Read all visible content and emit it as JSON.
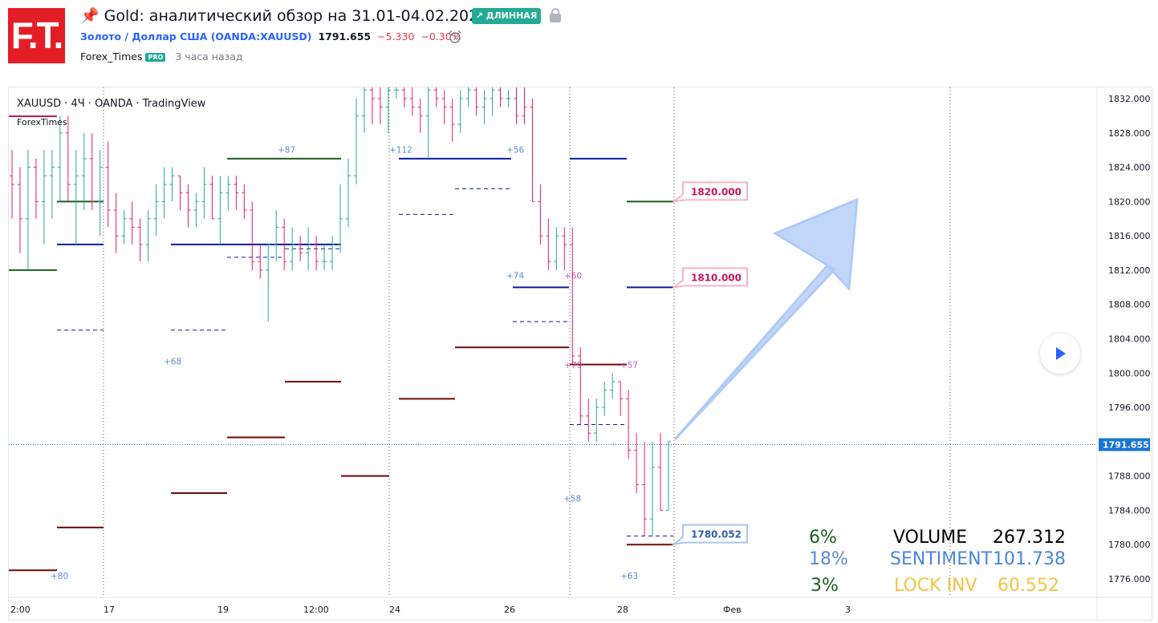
{
  "header": {
    "logo_text": "F.T.",
    "title": "Gold: аналитический обзор на 31.01-04.02.2022.",
    "badge": "↗ ДЛИННАЯ",
    "symbol_name": "Золото / Доллар США (OANDA:XAUUSD)",
    "price": "1791.655",
    "change": "−5.330",
    "change_pct": "−0.30%",
    "author": "Forex_Times",
    "pro_badge": "PRO",
    "time_ago": "3 часа назад",
    "icons": [
      "pin-icon",
      "lock-icon",
      "alarm-icon",
      "play-icon"
    ]
  },
  "chart_data": {
    "type": "candlestick",
    "legend_main": "XAUUSD · 4Ч · OANDA · TradingView",
    "legend_sub": "ForexTimes",
    "y_ticks": [
      "1832.000",
      "1828.000",
      "1824.000",
      "1820.000",
      "1816.000",
      "1812.000",
      "1808.000",
      "1804.000",
      "1800.000",
      "1796.000",
      "1792.000",
      "1788.000",
      "1784.000",
      "1780.000",
      "1776.000"
    ],
    "y_tick_values": [
      1832,
      1828,
      1824,
      1820,
      1816,
      1812,
      1808,
      1804,
      1800,
      1796,
      1792,
      1788,
      1784,
      1780,
      1776
    ],
    "ylim": [
      1774.4,
      1833.3
    ],
    "x_ticks": [
      "2:00",
      "17",
      "19",
      "12:00",
      "24",
      "26",
      "28",
      "Фев",
      "3"
    ],
    "current_price": {
      "label": "1791.655",
      "value": 1791.655
    },
    "price_labels": [
      {
        "label": "1820.000",
        "value": 1820.0,
        "color": "#e91e63"
      },
      {
        "label": "1810.000",
        "value": 1810.0,
        "color": "#e91e63"
      },
      {
        "label": "1780.052",
        "value": 1780.052,
        "color": "#2962ff"
      }
    ],
    "level_labels": [
      "+80",
      "+68",
      "+87",
      "+112",
      "+56",
      "+74",
      "+60",
      "+79",
      "+57",
      "+58",
      "+63"
    ],
    "stats": {
      "volume_label": "VOLUME",
      "volume_value": "267.312",
      "volume_pct": "6%",
      "sentiment_label": "SENTIMENT",
      "sentiment_value": "101.738",
      "sentiment_pct": "18%",
      "lockinv_label": "LOCK INV",
      "lockinv_value": "60.552",
      "lockinv_pct": "3%"
    },
    "colors": {
      "up": "#26a69a",
      "down": "#e91e63",
      "green_level": "#1b5e20",
      "blue_level": "#0d1b9e",
      "maroon_level": "#6d0a0a",
      "arrow": "#90b4f5",
      "price_tag": "#1976d2"
    },
    "candles": [
      [
        1823,
        1826,
        1818,
        1822,
        "d"
      ],
      [
        1822,
        1824,
        1814,
        1818,
        "d"
      ],
      [
        1818,
        1826,
        1812,
        1824,
        "u"
      ],
      [
        1824,
        1825,
        1818,
        1820,
        "d"
      ],
      [
        1820,
        1826,
        1815,
        1823,
        "u"
      ],
      [
        1823,
        1826,
        1818,
        1824,
        "u"
      ],
      [
        1824,
        1830,
        1820,
        1828,
        "u"
      ],
      [
        1828,
        1830,
        1820,
        1822,
        "d"
      ],
      [
        1822,
        1826,
        1815,
        1823,
        "u"
      ],
      [
        1823,
        1828,
        1819,
        1825,
        "u"
      ],
      [
        1825,
        1828,
        1819,
        1820,
        "d"
      ],
      [
        1820,
        1826,
        1816,
        1824,
        "u"
      ],
      [
        1824,
        1827,
        1817,
        1819,
        "d"
      ],
      [
        1819,
        1821,
        1814,
        1816,
        "d"
      ],
      [
        1816,
        1819,
        1815,
        1818,
        "u"
      ],
      [
        1818,
        1820,
        1815,
        1817,
        "d"
      ],
      [
        1817,
        1818,
        1813,
        1815,
        "d"
      ],
      [
        1815,
        1819,
        1813,
        1818,
        "u"
      ],
      [
        1818,
        1822,
        1816,
        1820,
        "u"
      ],
      [
        1820,
        1824,
        1818,
        1822,
        "u"
      ],
      [
        1822,
        1824,
        1820,
        1823,
        "u"
      ],
      [
        1823,
        1823,
        1819,
        1821,
        "d"
      ],
      [
        1821,
        1822,
        1817,
        1819,
        "d"
      ],
      [
        1819,
        1821,
        1817,
        1820,
        "u"
      ],
      [
        1820,
        1824,
        1818,
        1822,
        "u"
      ],
      [
        1822,
        1823,
        1818,
        1818,
        "d"
      ],
      [
        1818,
        1823,
        1815,
        1821,
        "u"
      ],
      [
        1821,
        1823,
        1819,
        1822,
        "u"
      ],
      [
        1822,
        1823,
        1819,
        1821,
        "d"
      ],
      [
        1821,
        1822,
        1818,
        1819,
        "d"
      ],
      [
        1819,
        1820,
        1812,
        1813,
        "d"
      ],
      [
        1813,
        1815,
        1811,
        1812,
        "d"
      ],
      [
        1812,
        1815,
        1806,
        1815,
        "u"
      ],
      [
        1815,
        1819,
        1813,
        1817,
        "u"
      ],
      [
        1817,
        1818,
        1812,
        1813,
        "d"
      ],
      [
        1813,
        1817,
        1812,
        1815,
        "u"
      ],
      [
        1815,
        1816,
        1813,
        1814,
        "d"
      ],
      [
        1814,
        1817,
        1812,
        1815,
        "u"
      ],
      [
        1815,
        1816,
        1812,
        1813,
        "d"
      ],
      [
        1813,
        1815,
        1812,
        1813,
        "u"
      ],
      [
        1813,
        1816,
        1812,
        1815,
        "u"
      ],
      [
        1815,
        1822,
        1814,
        1818,
        "u"
      ],
      [
        1818,
        1825,
        1817,
        1823,
        "u"
      ],
      [
        1823,
        1832,
        1822,
        1830,
        "u"
      ],
      [
        1830,
        1834,
        1828,
        1833,
        "u"
      ],
      [
        1833,
        1834,
        1829,
        1832,
        "d"
      ],
      [
        1832,
        1834,
        1829,
        1831,
        "d"
      ],
      [
        1831,
        1834,
        1828,
        1833,
        "u"
      ],
      [
        1833,
        1834,
        1832,
        1833,
        "u"
      ],
      [
        1833,
        1834,
        1831,
        1832,
        "d"
      ],
      [
        1832,
        1834,
        1830,
        1831,
        "d"
      ],
      [
        1831,
        1832,
        1828,
        1830,
        "d"
      ],
      [
        1830,
        1834,
        1825,
        1833,
        "u"
      ],
      [
        1833,
        1834,
        1831,
        1832,
        "d"
      ],
      [
        1832,
        1833,
        1829,
        1831,
        "d"
      ],
      [
        1831,
        1832,
        1827,
        1829,
        "d"
      ],
      [
        1829,
        1833,
        1828,
        1832,
        "u"
      ],
      [
        1832,
        1834,
        1831,
        1833,
        "u"
      ],
      [
        1833,
        1834,
        1830,
        1831,
        "d"
      ],
      [
        1831,
        1833,
        1829,
        1832,
        "u"
      ],
      [
        1832,
        1834,
        1830,
        1833,
        "u"
      ],
      [
        1833,
        1834,
        1831,
        1832,
        "d"
      ],
      [
        1832,
        1833,
        1831,
        1832,
        "u"
      ],
      [
        1832,
        1834,
        1829,
        1830,
        "d"
      ],
      [
        1830,
        1834,
        1829,
        1831,
        "d"
      ],
      [
        1831,
        1832,
        1820,
        1820,
        "d"
      ],
      [
        1820,
        1822,
        1815,
        1816,
        "d"
      ],
      [
        1816,
        1818,
        1812,
        1813,
        "d"
      ],
      [
        1813,
        1817,
        1812,
        1816,
        "u"
      ],
      [
        1816,
        1817,
        1812,
        1815,
        "d"
      ],
      [
        1815,
        1817,
        1801,
        1802,
        "d"
      ],
      [
        1802,
        1803,
        1794,
        1795,
        "d"
      ],
      [
        1795,
        1797,
        1792,
        1793,
        "d"
      ],
      [
        1793,
        1797,
        1792,
        1796,
        "u"
      ],
      [
        1796,
        1799,
        1795,
        1798,
        "u"
      ],
      [
        1798,
        1800,
        1797,
        1799,
        "u"
      ],
      [
        1799,
        1799,
        1795,
        1797,
        "d"
      ],
      [
        1797,
        1798,
        1790,
        1791,
        "d"
      ],
      [
        1791,
        1793,
        1786,
        1787,
        "d"
      ],
      [
        1787,
        1792,
        1781,
        1783,
        "d"
      ],
      [
        1783,
        1792,
        1781,
        1789,
        "u"
      ],
      [
        1789,
        1793,
        1784,
        1784,
        "d"
      ],
      [
        1784,
        1792,
        1784,
        1792,
        "u"
      ]
    ]
  }
}
